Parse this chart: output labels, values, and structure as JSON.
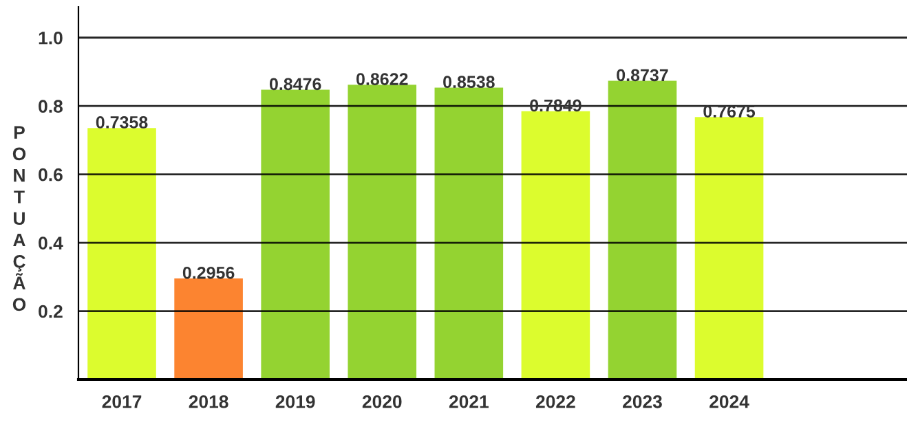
{
  "chart_data": {
    "type": "bar",
    "ylabel": "PONTUAÇÃO",
    "categories": [
      "2017",
      "2018",
      "2019",
      "2020",
      "2021",
      "2022",
      "2023",
      "2024"
    ],
    "values": [
      0.7358,
      0.2956,
      0.8476,
      0.8622,
      0.8538,
      0.7849,
      0.8737,
      0.7675
    ],
    "colors": [
      "#dcfc2e",
      "#fc8430",
      "#94d331",
      "#94d331",
      "#94d331",
      "#dcfc2e",
      "#94d331",
      "#dcfc2e"
    ],
    "ylim": [
      0,
      1.09
    ],
    "yticks": [
      {
        "value": 0.2,
        "label": "0.2"
      },
      {
        "value": 0.4,
        "label": "0.4"
      },
      {
        "value": 0.6,
        "label": "0.6"
      },
      {
        "value": 0.8,
        "label": "0.8"
      },
      {
        "value": 1.0,
        "label": "1.0"
      }
    ],
    "grid": "y",
    "data_labels": true
  }
}
